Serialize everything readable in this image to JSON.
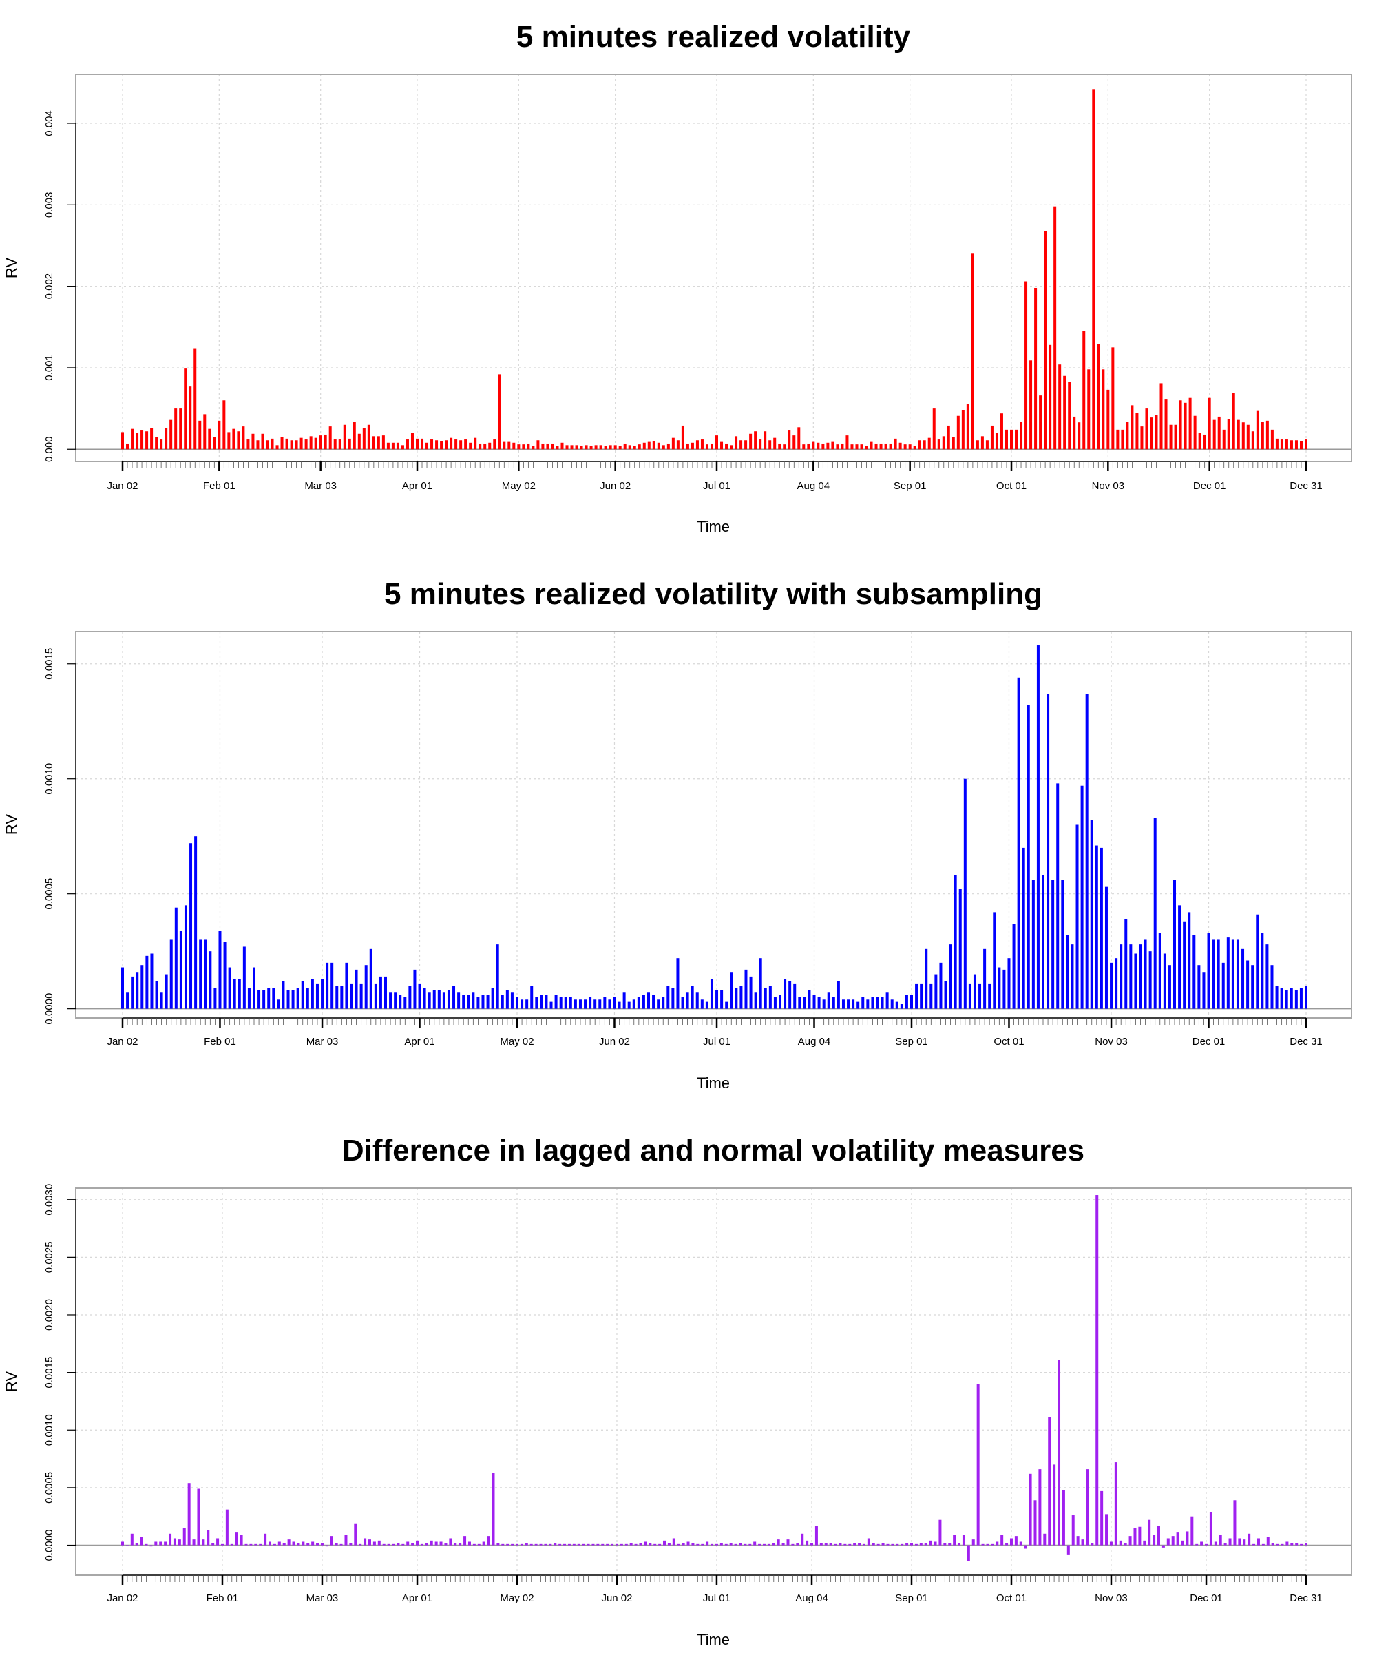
{
  "chart_data": [
    {
      "type": "bar",
      "title": "5 minutes realized volatility",
      "xlabel": "Time",
      "ylabel": "RV",
      "color": "#ff0000",
      "ylim": [
        -0.00015,
        0.0046
      ],
      "yticks": [
        0,
        0.001,
        0.002,
        0.003,
        0.004
      ],
      "ytick_labels": [
        "0.000",
        "0.001",
        "0.002",
        "0.003",
        "0.004"
      ],
      "x_tick_labels": [
        "Jan 02",
        "Feb 01",
        "Mar 03",
        "Apr 01",
        "May 02",
        "Jun 02",
        "Jul 01",
        "Aug 04",
        "Sep 01",
        "Oct 01",
        "Nov 03",
        "Dec 01",
        "Dec 31"
      ],
      "values": [
        0.00021,
        7e-05,
        0.00025,
        0.0002,
        0.00023,
        0.00022,
        0.00026,
        0.00015,
        0.00012,
        0.00026,
        0.00036,
        0.0005,
        0.0005,
        0.00099,
        0.00077,
        0.00124,
        0.00035,
        0.00043,
        0.00025,
        0.00015,
        0.00035,
        0.0006,
        0.00021,
        0.00025,
        0.00022,
        0.00028,
        0.00012,
        0.00019,
        0.00011,
        0.00019,
        0.00011,
        0.00013,
        5e-05,
        0.00015,
        0.00013,
        0.00011,
        0.00011,
        0.00014,
        0.00012,
        0.00016,
        0.00014,
        0.00017,
        0.00018,
        0.00028,
        0.00012,
        0.00012,
        0.0003,
        0.00013,
        0.00034,
        0.00019,
        0.00026,
        0.0003,
        0.00016,
        0.00016,
        0.00017,
        8e-05,
        8e-05,
        8e-05,
        5e-05,
        0.00012,
        0.0002,
        0.00013,
        0.00013,
        8e-05,
        0.00012,
        0.00011,
        0.0001,
        0.00011,
        0.00014,
        0.00012,
        0.00011,
        0.00012,
        8e-05,
        0.00014,
        7e-05,
        7e-05,
        8e-05,
        0.00012,
        0.00092,
        9e-05,
        9e-05,
        8e-05,
        6e-05,
        6e-05,
        7e-05,
        4e-05,
        0.00011,
        7e-05,
        7e-05,
        7e-05,
        4e-05,
        8e-05,
        5e-05,
        5e-05,
        5e-05,
        4e-05,
        5e-05,
        4e-05,
        5e-05,
        5e-05,
        4e-05,
        5e-05,
        5e-05,
        4e-05,
        7e-05,
        5e-05,
        4e-05,
        6e-05,
        8e-05,
        9e-05,
        0.0001,
        8e-05,
        5e-05,
        7e-05,
        0.00014,
        0.00011,
        0.00029,
        7e-05,
        8e-05,
        0.00011,
        0.00012,
        6e-05,
        7e-05,
        0.00017,
        9e-05,
        7e-05,
        5e-05,
        0.00016,
        0.00011,
        0.00011,
        0.00019,
        0.00022,
        0.00012,
        0.00022,
        0.00011,
        0.00014,
        7e-05,
        6e-05,
        0.00023,
        0.00017,
        0.00027,
        6e-05,
        7e-05,
        9e-05,
        8e-05,
        7e-05,
        8e-05,
        9e-05,
        6e-05,
        7e-05,
        0.00017,
        6e-05,
        6e-05,
        6e-05,
        4e-05,
        9e-05,
        7e-05,
        7e-05,
        7e-05,
        7e-05,
        0.00013,
        8e-05,
        6e-05,
        6e-05,
        4e-05,
        0.00011,
        0.00011,
        0.00014,
        0.0005,
        0.00012,
        0.00016,
        0.00029,
        0.00015,
        0.00041,
        0.00048,
        0.00056,
        0.0024,
        0.00011,
        0.00016,
        0.00011,
        0.00029,
        0.0002,
        0.00044,
        0.00024,
        0.00024,
        0.00024,
        0.00034,
        0.00206,
        0.00109,
        0.00198,
        0.00066,
        0.00268,
        0.00128,
        0.00298,
        0.00104,
        0.0009,
        0.00083,
        0.0004,
        0.00033,
        0.00145,
        0.00098,
        0.00442,
        0.00129,
        0.00098,
        0.00073,
        0.00125,
        0.00024,
        0.00024,
        0.00034,
        0.00054,
        0.00045,
        0.00028,
        0.0005,
        0.00039,
        0.00042,
        0.00081,
        0.00061,
        0.0003,
        0.0003,
        0.0006,
        0.00057,
        0.00063,
        0.00041,
        0.0002,
        0.00018,
        0.00063,
        0.00036,
        0.0004,
        0.00024,
        0.00037,
        0.00069,
        0.00036,
        0.00033,
        0.0003,
        0.00022,
        0.00047,
        0.00034,
        0.00035,
        0.00024,
        0.00013,
        0.00012,
        0.00012,
        0.00011,
        0.00011,
        0.0001,
        0.00012
      ]
    },
    {
      "type": "bar",
      "title": "5 minutes realized volatility with subsampling",
      "xlabel": "Time",
      "ylabel": "RV",
      "color": "#0000ff",
      "ylim": [
        -4e-05,
        0.00164
      ],
      "yticks": [
        0,
        0.0005,
        0.001,
        0.0015
      ],
      "ytick_labels": [
        "0.0000",
        "0.0005",
        "0.0010",
        "0.0015"
      ],
      "x_tick_labels": [
        "Jan 02",
        "Feb 01",
        "Mar 03",
        "Apr 01",
        "May 02",
        "Jun 02",
        "Jul 01",
        "Aug 04",
        "Sep 01",
        "Oct 01",
        "Nov 03",
        "Dec 01",
        "Dec 31"
      ],
      "values": [
        0.00018,
        7e-05,
        0.00014,
        0.00016,
        0.00019,
        0.00023,
        0.00024,
        0.00012,
        7e-05,
        0.00015,
        0.0003,
        0.00044,
        0.00034,
        0.00045,
        0.00072,
        0.00075,
        0.0003,
        0.0003,
        0.00025,
        9e-05,
        0.00034,
        0.00029,
        0.00018,
        0.00013,
        0.00013,
        0.00027,
        9e-05,
        0.00018,
        8e-05,
        8e-05,
        9e-05,
        9e-05,
        4e-05,
        0.00012,
        8e-05,
        8e-05,
        9e-05,
        0.00012,
        9e-05,
        0.00013,
        0.00011,
        0.00013,
        0.0002,
        0.0002,
        0.0001,
        0.0001,
        0.0002,
        0.00011,
        0.00017,
        0.00011,
        0.00019,
        0.00026,
        0.00011,
        0.00014,
        0.00014,
        7e-05,
        7e-05,
        6e-05,
        5e-05,
        0.0001,
        0.00017,
        0.00011,
        9e-05,
        7e-05,
        8e-05,
        8e-05,
        7e-05,
        8e-05,
        0.0001,
        7e-05,
        6e-05,
        6e-05,
        7e-05,
        5e-05,
        6e-05,
        6e-05,
        9e-05,
        0.00028,
        6e-05,
        8e-05,
        7e-05,
        5e-05,
        4e-05,
        4e-05,
        0.0001,
        5e-05,
        6e-05,
        6e-05,
        3e-05,
        6e-05,
        5e-05,
        5e-05,
        5e-05,
        4e-05,
        4e-05,
        4e-05,
        5e-05,
        4e-05,
        4e-05,
        5e-05,
        4e-05,
        5e-05,
        3e-05,
        7e-05,
        3e-05,
        4e-05,
        5e-05,
        6e-05,
        7e-05,
        6e-05,
        4e-05,
        5e-05,
        0.0001,
        9e-05,
        0.00022,
        5e-05,
        7e-05,
        0.0001,
        7e-05,
        4e-05,
        3e-05,
        0.00013,
        8e-05,
        8e-05,
        3e-05,
        0.00016,
        9e-05,
        0.0001,
        0.00017,
        0.00014,
        7e-05,
        0.00022,
        9e-05,
        0.0001,
        5e-05,
        6e-05,
        0.00013,
        0.00012,
        0.00011,
        5e-05,
        5e-05,
        8e-05,
        6e-05,
        5e-05,
        4e-05,
        7e-05,
        5e-05,
        0.00012,
        4e-05,
        4e-05,
        4e-05,
        3e-05,
        5e-05,
        4e-05,
        5e-05,
        5e-05,
        5e-05,
        7e-05,
        4e-05,
        3e-05,
        2e-05,
        6e-05,
        6e-05,
        0.00011,
        0.00011,
        0.00026,
        0.00011,
        0.00015,
        0.0002,
        0.00012,
        0.00028,
        0.00058,
        0.00052,
        0.001,
        0.00011,
        0.00015,
        0.00011,
        0.00026,
        0.00011,
        0.00042,
        0.00018,
        0.00017,
        0.00022,
        0.00037,
        0.00144,
        0.0007,
        0.00132,
        0.00056,
        0.00158,
        0.00058,
        0.00137,
        0.00056,
        0.00098,
        0.00056,
        0.00032,
        0.00028,
        0.0008,
        0.00097,
        0.00137,
        0.00082,
        0.00071,
        0.0007,
        0.00053,
        0.0002,
        0.00022,
        0.00028,
        0.00039,
        0.00028,
        0.00024,
        0.00028,
        0.0003,
        0.00025,
        0.00083,
        0.00033,
        0.00024,
        0.00019,
        0.00056,
        0.00045,
        0.00038,
        0.00042,
        0.00032,
        0.00019,
        0.00016,
        0.00033,
        0.0003,
        0.0003,
        0.0002,
        0.00031,
        0.0003,
        0.0003,
        0.00026,
        0.00021,
        0.00019,
        0.00041,
        0.00033,
        0.00028,
        0.00019,
        0.0001,
        9e-05,
        8e-05,
        9e-05,
        8e-05,
        9e-05,
        0.0001
      ]
    },
    {
      "type": "bar",
      "title": "Difference in lagged and normal volatility measures",
      "xlabel": "Time",
      "ylabel": "RV",
      "color": "#a020f0",
      "ylim": [
        -0.00026,
        0.0031
      ],
      "yticks": [
        0,
        0.0005,
        0.001,
        0.0015,
        0.002,
        0.0025,
        0.003
      ],
      "ytick_labels": [
        "0.0000",
        "0.0005",
        "0.0010",
        "0.0015",
        "0.0020",
        "0.0025",
        "0.0030"
      ],
      "x_tick_labels": [
        "Jan 02",
        "Feb 01",
        "Mar 03",
        "Apr 01",
        "May 02",
        "Jun 02",
        "Jul 01",
        "Aug 04",
        "Sep 01",
        "Oct 01",
        "Nov 03",
        "Dec 01",
        "Dec 31"
      ],
      "values": [
        3e-05,
        0.0,
        0.0001,
        2e-05,
        7e-05,
        1e-05,
        -1e-05,
        3e-05,
        3e-05,
        3e-05,
        0.0001,
        6e-05,
        5e-05,
        0.00015,
        0.00054,
        5e-05,
        0.00049,
        5e-05,
        0.00013,
        2e-05,
        6e-05,
        1e-05,
        0.00031,
        1e-05,
        0.00011,
        9e-05,
        1e-05,
        1e-05,
        1e-05,
        1e-05,
        0.0001,
        3e-05,
        1e-05,
        3e-05,
        2e-05,
        5e-05,
        3e-05,
        2e-05,
        3e-05,
        2e-05,
        3e-05,
        2e-05,
        2e-05,
        -1e-05,
        8e-05,
        2e-05,
        1e-05,
        9e-05,
        2e-05,
        0.00019,
        1e-05,
        6e-05,
        5e-05,
        3e-05,
        4e-05,
        1e-05,
        1e-05,
        1e-05,
        2e-05,
        1e-05,
        3e-05,
        2e-05,
        4e-05,
        1e-05,
        2e-05,
        4e-05,
        3e-05,
        3e-05,
        2e-05,
        6e-05,
        2e-05,
        2e-05,
        8e-05,
        3e-05,
        1e-05,
        1e-05,
        3e-05,
        8e-05,
        0.00063,
        2e-05,
        1e-05,
        1e-05,
        1e-05,
        1e-05,
        1e-05,
        2e-05,
        1e-05,
        1e-05,
        1e-05,
        1e-05,
        1e-05,
        2e-05,
        1e-05,
        1e-05,
        1e-05,
        1e-05,
        1e-05,
        1e-05,
        1e-05,
        1e-05,
        1e-05,
        1e-05,
        1e-05,
        1e-05,
        1e-05,
        1e-05,
        1e-05,
        2e-05,
        1e-05,
        2e-05,
        3e-05,
        2e-05,
        1e-05,
        1e-05,
        4e-05,
        2e-05,
        6e-05,
        1e-05,
        2e-05,
        3e-05,
        2e-05,
        1e-05,
        1e-05,
        3e-05,
        1e-05,
        1e-05,
        2e-05,
        1e-05,
        2e-05,
        1e-05,
        2e-05,
        1e-05,
        1e-05,
        3e-05,
        1e-05,
        1e-05,
        1e-05,
        2e-05,
        5e-05,
        2e-05,
        5e-05,
        1e-05,
        2e-05,
        0.0001,
        4e-05,
        2e-05,
        0.00017,
        2e-05,
        2e-05,
        2e-05,
        1e-05,
        2e-05,
        1e-05,
        1e-05,
        2e-05,
        2e-05,
        1e-05,
        6e-05,
        2e-05,
        1e-05,
        2e-05,
        1e-05,
        1e-05,
        1e-05,
        1e-05,
        2e-05,
        2e-05,
        1e-05,
        2e-05,
        2e-05,
        4e-05,
        3e-05,
        0.00022,
        2e-05,
        2e-05,
        9e-05,
        2e-05,
        9e-05,
        -0.00014,
        5e-05,
        0.0014,
        1e-05,
        1e-05,
        1e-05,
        3e-05,
        9e-05,
        2e-05,
        6e-05,
        8e-05,
        3e-05,
        -3e-05,
        0.00062,
        0.00039,
        0.00066,
        0.0001,
        0.00111,
        0.0007,
        0.00161,
        0.00048,
        -8e-05,
        0.00026,
        8e-05,
        5e-05,
        0.00066,
        2e-05,
        0.00304,
        0.00047,
        0.00027,
        3e-05,
        0.00072,
        4e-05,
        2e-05,
        8e-05,
        0.00015,
        0.00016,
        4e-05,
        0.00022,
        9e-05,
        0.00017,
        -2e-05,
        6e-05,
        8e-05,
        0.00011,
        4e-05,
        0.00012,
        0.00025,
        1e-05,
        3e-05,
        1e-05,
        0.00029,
        3e-05,
        9e-05,
        2e-05,
        6e-05,
        0.00039,
        6e-05,
        5e-05,
        0.0001,
        1e-05,
        6e-05,
        1e-05,
        7e-05,
        2e-05,
        1e-05,
        1e-05,
        3e-05,
        2e-05,
        2e-05,
        1e-05,
        2e-05
      ]
    }
  ]
}
